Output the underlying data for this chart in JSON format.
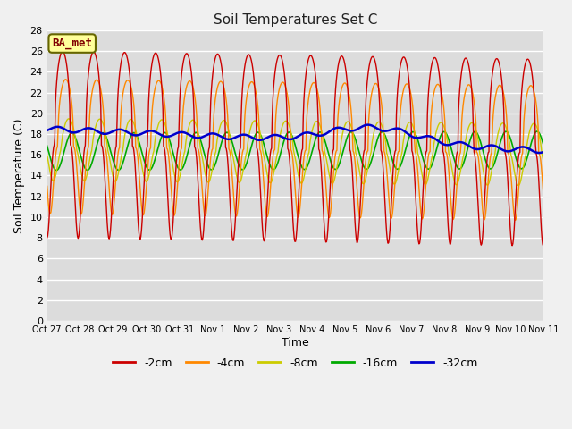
{
  "title": "Soil Temperatures Set C",
  "xlabel": "Time",
  "ylabel": "Soil Temperature (C)",
  "ylim": [
    0,
    28
  ],
  "yticks": [
    0,
    2,
    4,
    6,
    8,
    10,
    12,
    14,
    16,
    18,
    20,
    22,
    24,
    26,
    28
  ],
  "xtick_labels": [
    "Oct 27",
    "Oct 28",
    "Oct 29",
    "Oct 30",
    "Oct 31",
    "Nov 1",
    "Nov 2",
    "Nov 3",
    "Nov 4",
    "Nov 5",
    "Nov 6",
    "Nov 7",
    "Nov 8",
    "Nov 9",
    "Nov 10",
    "Nov 11"
  ],
  "bg_color": "#dcdcdc",
  "fig_color": "#f0f0f0",
  "annotation_text": "BA_met",
  "annotation_bg": "#ffff99",
  "annotation_edge": "#666600",
  "annotation_text_color": "#800000",
  "legend_labels": [
    "-2cm",
    "-4cm",
    "-8cm",
    "-16cm",
    "-32cm"
  ],
  "line_colors": [
    "#cc0000",
    "#ff8800",
    "#cccc00",
    "#00aa00",
    "#0000cc"
  ],
  "line_widths": [
    1.0,
    1.0,
    1.0,
    1.2,
    1.8
  ],
  "n_days": 16,
  "pts_per_day": 48
}
